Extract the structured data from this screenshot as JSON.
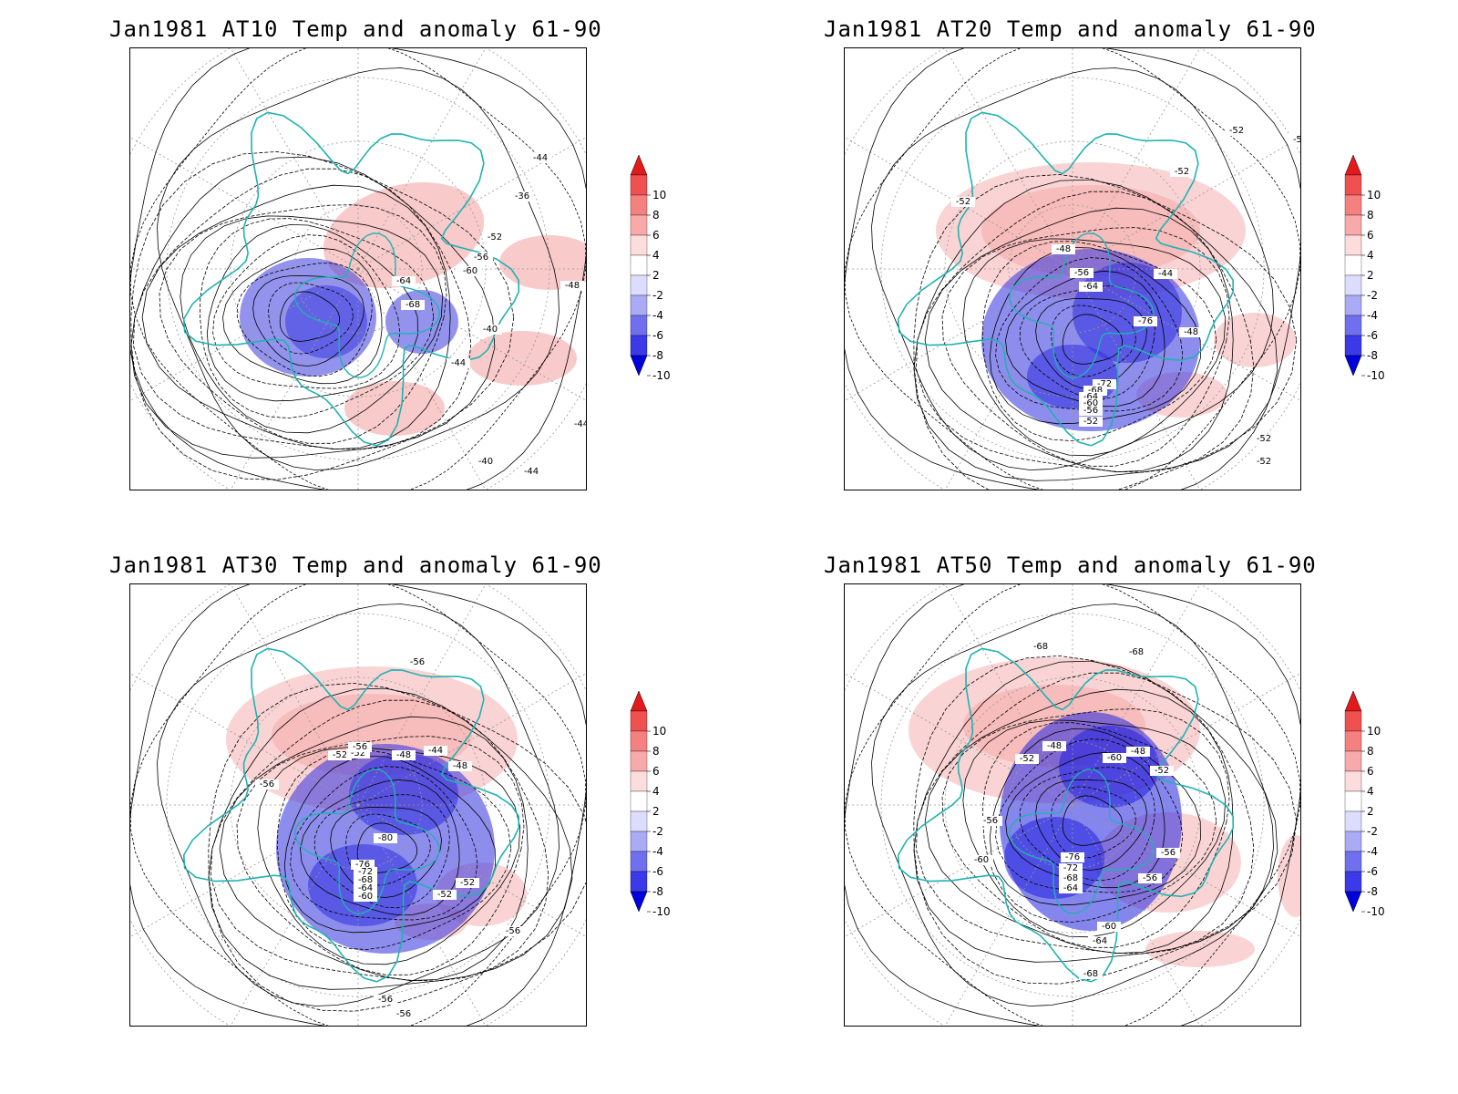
{
  "panels": [
    {
      "title": "Jan1981 AT10 Temp and anomaly 61-90",
      "contour_labels": [
        "-44",
        "-40",
        "-36",
        "-48",
        "-52",
        "-56",
        "-60",
        "-64",
        "-68",
        "-40",
        "-44",
        "-40",
        "-44",
        "-40",
        "-44"
      ],
      "colors": {
        "warm": "#f08a8a",
        "cold": "#3a3ae0"
      }
    },
    {
      "title": "Jan1981 AT20 Temp and anomaly 61-90",
      "contour_labels": [
        "-52",
        "-52",
        "-52",
        "-52",
        "-48",
        "-44",
        "-56",
        "-64",
        "-76",
        "-72",
        "-68",
        "-64",
        "-60",
        "-56",
        "-52",
        "-48",
        "-52",
        "-52"
      ],
      "colors": {
        "warm": "#f5a0a0",
        "cold": "#2f2fe0"
      }
    },
    {
      "title": "Jan1981 AT30 Temp and anomaly 61-90",
      "contour_labels": [
        "-56",
        "-48",
        "-52",
        "-56",
        "-44",
        "-48",
        "-52",
        "-56",
        "-80",
        "-76",
        "-72",
        "-68",
        "-64",
        "-60",
        "-52",
        "-52",
        "-56",
        "-56",
        "-56",
        "-56"
      ],
      "colors": {
        "warm": "#f5a0a0",
        "cold": "#2f2fe0"
      }
    },
    {
      "title": "Jan1981 AT50 Temp and anomaly 61-90",
      "contour_labels": [
        "-68",
        "-68",
        "-52",
        "-48",
        "-60",
        "-48",
        "-52",
        "-56",
        "-60",
        "-76",
        "-72",
        "-68",
        "-64",
        "-56",
        "-56",
        "-60",
        "-64",
        "-68"
      ],
      "colors": {
        "warm": "#f5a0a0",
        "cold": "#2020e0"
      }
    }
  ],
  "colorbar": {
    "labels": [
      "10",
      "8",
      "6",
      "4",
      "2",
      "-2",
      "-4",
      "-6",
      "-8",
      "-10"
    ],
    "colors": [
      "#e31a1c",
      "#f05050",
      "#f58080",
      "#f8aaaa",
      "#fcdcdc",
      "#ffffff",
      "#dcdcff",
      "#aaaaf5",
      "#7070ee",
      "#3a3ae8",
      "#0000dd"
    ]
  }
}
